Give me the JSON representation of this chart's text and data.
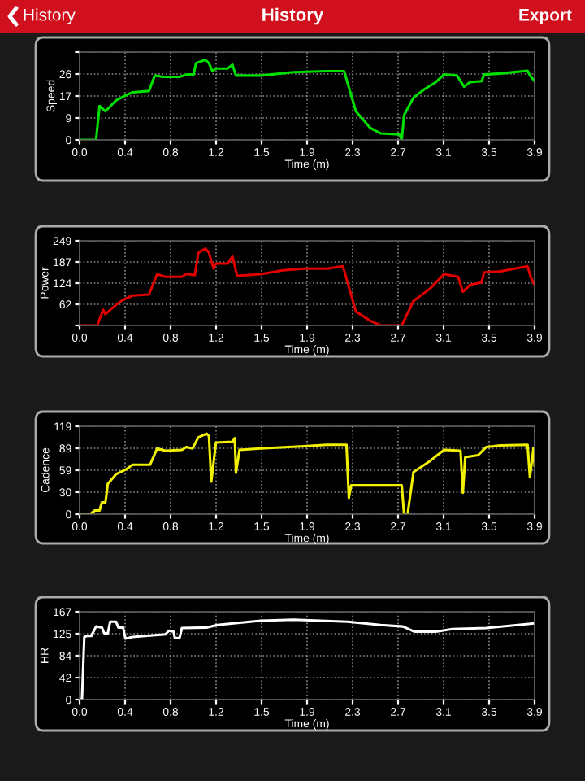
{
  "chart_data": [
    {
      "type": "line",
      "title": "History",
      "annotations": [
        "History",
        "Export"
      ],
      "xlabel": "Time (m)",
      "ylabel": "Speed",
      "xlim": [
        0,
        3.87
      ],
      "ylim": [
        0,
        34.67
      ],
      "xticks": [
        {
          "value": 0,
          "label": "0.0"
        },
        {
          "value": 0.387,
          "label": "0.4"
        },
        {
          "value": 0.774,
          "label": "0.8"
        },
        {
          "value": 1.161,
          "label": "1.2"
        },
        {
          "value": 1.548,
          "label": "1.5"
        },
        {
          "value": 1.935,
          "label": "1.9"
        },
        {
          "value": 2.322,
          "label": "2.3"
        },
        {
          "value": 2.709,
          "label": "2.7"
        },
        {
          "value": 3.096,
          "label": "3.1"
        },
        {
          "value": 3.483,
          "label": "3.5"
        },
        {
          "value": 3.87,
          "label": "3.9"
        }
      ],
      "yticks": [
        0,
        {
          "value": 8.67,
          "label": "9"
        },
        {
          "value": 17.33,
          "label": "17"
        },
        26,
        {
          "value": 34.67,
          "label": null
        }
      ],
      "grid": true,
      "marker": "none",
      "line_style": "solid",
      "series": [
        {
          "color": "#00e000",
          "x": [
            0,
            0.14,
            0.17,
            0.22,
            0.31,
            0.38,
            0.45,
            0.59,
            0.64,
            0.71,
            0.85,
            0.91,
            0.97,
            0.99,
            1.07,
            1.1,
            1.13,
            1.16,
            1.26,
            1.3,
            1.33,
            1.54,
            1.82,
            2.1,
            2.25,
            2.35,
            2.47,
            2.56,
            2.72,
            2.74,
            2.76,
            2.84,
            2.93,
            3.03,
            3.1,
            3.21,
            3.27,
            3.32,
            3.42,
            3.44,
            3.58,
            3.81,
            3.83,
            3.87
          ],
          "values": [
            0,
            0,
            13.4,
            11.3,
            15.6,
            17.3,
            18.8,
            19.3,
            25.4,
            24.9,
            24.9,
            25.8,
            25.8,
            30.3,
            31.6,
            30.3,
            27.1,
            28.2,
            28.2,
            29.7,
            25.4,
            25.4,
            26.7,
            27.1,
            27.1,
            11.3,
            4.8,
            2.6,
            2.2,
            0,
            9.8,
            16.7,
            19.9,
            22.8,
            25.8,
            25.4,
            21.0,
            22.8,
            23.2,
            25.8,
            26.2,
            27.3,
            25.4,
            23.2
          ]
        }
      ]
    },
    {
      "type": "line",
      "xlabel": "Time (m)",
      "ylabel": "Power",
      "xlim": [
        0,
        3.87
      ],
      "ylim": [
        0,
        249
      ],
      "xticks": [
        {
          "value": 0,
          "label": "0.0"
        },
        {
          "value": 0.387,
          "label": "0.4"
        },
        {
          "value": 0.774,
          "label": "0.8"
        },
        {
          "value": 1.161,
          "label": "1.2"
        },
        {
          "value": 1.548,
          "label": "1.5"
        },
        {
          "value": 1.935,
          "label": "1.9"
        },
        {
          "value": 2.322,
          "label": "2.3"
        },
        {
          "value": 2.709,
          "label": "2.7"
        },
        {
          "value": 3.096,
          "label": "3.1"
        },
        {
          "value": 3.483,
          "label": "3.5"
        },
        {
          "value": 3.87,
          "label": "3.9"
        }
      ],
      "yticks": [
        {
          "value": 0,
          "label": null
        },
        {
          "value": 62.25,
          "label": "62"
        },
        {
          "value": 124.5,
          "label": "124"
        },
        {
          "value": 186.75,
          "label": "187"
        },
        249
      ],
      "grid": true,
      "marker": "none",
      "line_style": "solid",
      "series": [
        {
          "color": "#e00000",
          "x": [
            0,
            0.15,
            0.2,
            0.22,
            0.31,
            0.38,
            0.45,
            0.59,
            0.66,
            0.73,
            0.87,
            0.91,
            0.98,
            1.01,
            1.07,
            1.1,
            1.14,
            1.16,
            1.26,
            1.3,
            1.34,
            1.54,
            1.73,
            1.91,
            2.1,
            2.24,
            2.35,
            2.47,
            2.56,
            2.74,
            2.84,
            2.98,
            3.1,
            3.22,
            3.26,
            3.32,
            3.42,
            3.44,
            3.58,
            3.81,
            3.84,
            3.87
          ],
          "values": [
            0,
            0,
            46,
            33,
            61,
            77,
            88,
            91,
            151,
            143,
            143,
            152,
            148,
            214,
            226,
            214,
            167,
            182,
            182,
            203,
            146,
            151,
            162,
            167,
            167,
            174,
            41,
            14,
            0,
            0,
            72,
            108,
            151,
            143,
            99,
            119,
            127,
            156,
            159,
            174,
            140,
            119
          ]
        }
      ]
    },
    {
      "type": "line",
      "xlabel": "Time (m)",
      "ylabel": "Cadence",
      "xlim": [
        0,
        3.87
      ],
      "ylim": [
        0,
        119
      ],
      "xticks": [
        {
          "value": 0,
          "label": "0.0"
        },
        {
          "value": 0.387,
          "label": "0.4"
        },
        {
          "value": 0.774,
          "label": "0.8"
        },
        {
          "value": 1.161,
          "label": "1.2"
        },
        {
          "value": 1.548,
          "label": "1.5"
        },
        {
          "value": 1.935,
          "label": "1.9"
        },
        {
          "value": 2.322,
          "label": "2.3"
        },
        {
          "value": 2.709,
          "label": "2.7"
        },
        {
          "value": 3.096,
          "label": "3.1"
        },
        {
          "value": 3.483,
          "label": "3.5"
        },
        {
          "value": 3.87,
          "label": "3.9"
        }
      ],
      "yticks": [
        0,
        {
          "value": 29.75,
          "label": "30"
        },
        {
          "value": 59.5,
          "label": "59"
        },
        {
          "value": 89.25,
          "label": "89"
        },
        119
      ],
      "grid": true,
      "marker": "none",
      "line_style": "solid",
      "series": [
        {
          "color": "#f0f000",
          "x": [
            0,
            0.09,
            0.13,
            0.17,
            0.19,
            0.22,
            0.24,
            0.31,
            0.4,
            0.45,
            0.6,
            0.66,
            0.73,
            0.87,
            0.91,
            0.96,
            1.01,
            1.08,
            1.1,
            1.12,
            1.16,
            1.3,
            1.32,
            1.33,
            1.36,
            1.54,
            1.91,
            2.1,
            2.27,
            2.29,
            2.31,
            2.74,
            2.76,
            2.79,
            2.84,
            2.98,
            3.1,
            3.24,
            3.26,
            3.28,
            3.39,
            3.46,
            3.58,
            3.81,
            3.83,
            3.86,
            3.87
          ],
          "values": [
            0,
            0,
            5,
            5,
            16,
            16,
            41,
            54,
            61,
            67,
            67,
            89,
            86,
            87,
            91,
            89,
            104,
            109,
            106,
            44,
            97,
            98,
            103,
            56,
            87,
            89,
            92,
            94,
            94,
            22,
            39,
            39,
            0,
            0,
            57,
            72,
            87,
            86,
            29,
            77,
            80,
            91,
            93,
            94,
            50,
            89,
            66
          ]
        }
      ]
    },
    {
      "type": "line",
      "xlabel": "Time (m)",
      "ylabel": "HR",
      "xlim": [
        0,
        3.87
      ],
      "ylim": [
        0,
        167
      ],
      "xticks": [
        {
          "value": 0,
          "label": "0.0"
        },
        {
          "value": 0.387,
          "label": "0.4"
        },
        {
          "value": 0.774,
          "label": "0.8"
        },
        {
          "value": 1.161,
          "label": "1.2"
        },
        {
          "value": 1.548,
          "label": "1.5"
        },
        {
          "value": 1.935,
          "label": "1.9"
        },
        {
          "value": 2.322,
          "label": "2.3"
        },
        {
          "value": 2.709,
          "label": "2.7"
        },
        {
          "value": 3.096,
          "label": "3.1"
        },
        {
          "value": 3.483,
          "label": "3.5"
        },
        {
          "value": 3.87,
          "label": "3.9"
        }
      ],
      "yticks": [
        0,
        {
          "value": 41.75,
          "label": "42"
        },
        {
          "value": 83.5,
          "label": "84"
        },
        {
          "value": 125.25,
          "label": "125"
        },
        167
      ],
      "grid": true,
      "marker": "none",
      "line_style": "solid",
      "series": [
        {
          "color": "#ffffff",
          "x": [
            0,
            0.02,
            0.04,
            0.06,
            0.1,
            0.14,
            0.19,
            0.21,
            0.24,
            0.26,
            0.31,
            0.33,
            0.37,
            0.39,
            0.45,
            0.73,
            0.76,
            0.8,
            0.81,
            0.85,
            0.87,
            1.08,
            1.17,
            1.54,
            1.82,
            2.28,
            2.56,
            2.75,
            2.85,
            3.03,
            3.17,
            3.46,
            3.87
          ],
          "values": [
            0,
            0,
            119,
            121,
            121,
            139,
            137,
            126,
            126,
            148,
            148,
            137,
            137,
            116,
            119,
            124,
            131,
            129,
            117,
            117,
            136,
            137,
            142,
            150,
            152,
            148,
            142,
            139,
            129,
            129,
            134,
            136,
            145
          ]
        }
      ]
    }
  ]
}
